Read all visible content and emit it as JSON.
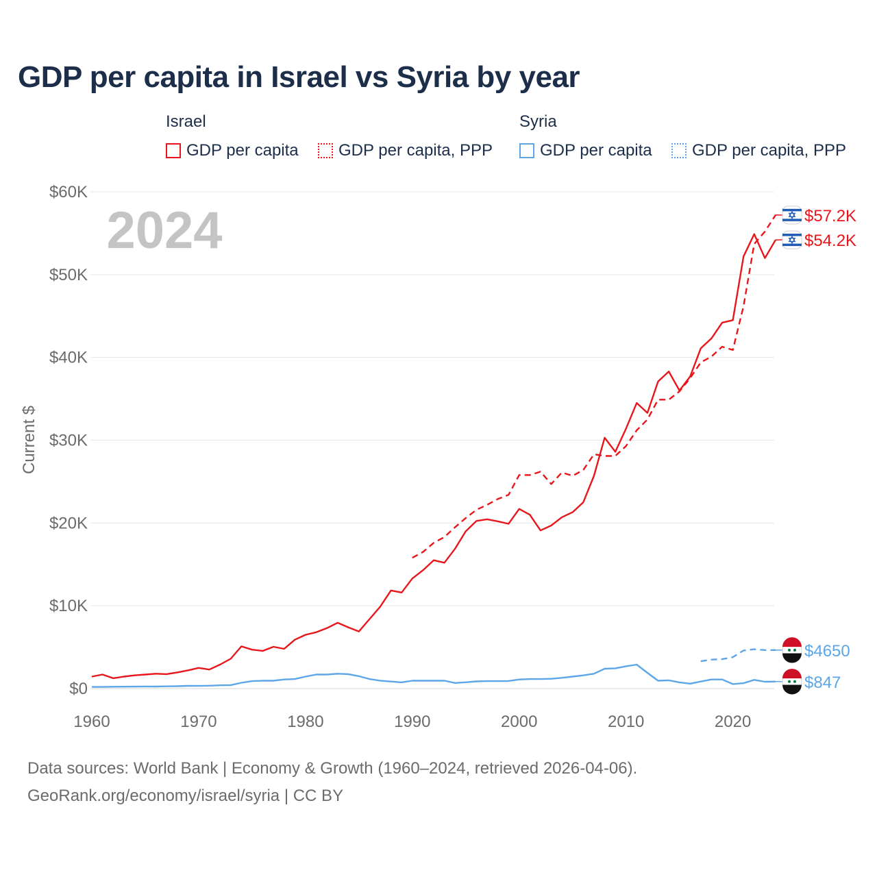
{
  "title": "GDP per capita in Israel vs Syria by year",
  "legend": {
    "groups": [
      {
        "country": "Israel",
        "items": [
          {
            "label": "GDP per capita",
            "style": "solid",
            "color": "#e8161b"
          },
          {
            "label": "GDP per capita, PPP",
            "style": "dotted",
            "color": "#e8161b"
          }
        ]
      },
      {
        "country": "Syria",
        "items": [
          {
            "label": "GDP per capita",
            "style": "solid",
            "color": "#5ca6e8"
          },
          {
            "label": "GDP per capita, PPP",
            "style": "dotted",
            "color": "#5ca6e8"
          }
        ]
      }
    ]
  },
  "year_watermark": "2024",
  "footer": {
    "line1": "Data sources: World Bank | Economy & Growth (1960–2024, retrieved 2026-04-06).",
    "line2": "GeoRank.org/economy/israel/syria | CC BY"
  },
  "chart_data": {
    "type": "line",
    "title": "GDP per capita in Israel vs Syria by year",
    "xlabel": "",
    "ylabel": "Current $",
    "xlim": [
      1960,
      2024
    ],
    "ylim": [
      0,
      60000
    ],
    "x_ticks": [
      1960,
      1970,
      1980,
      1990,
      2000,
      2010,
      2020
    ],
    "y_ticks": [
      {
        "value": 0,
        "label": "$0"
      },
      {
        "value": 10000,
        "label": "$10K"
      },
      {
        "value": 20000,
        "label": "$20K"
      },
      {
        "value": 30000,
        "label": "$30K"
      },
      {
        "value": 40000,
        "label": "$40K"
      },
      {
        "value": 50000,
        "label": "$50K"
      },
      {
        "value": 60000,
        "label": "$60K"
      }
    ],
    "grid": true,
    "series": [
      {
        "name": "Israel GDP per capita",
        "color": "#e8161b",
        "dash": "solid",
        "end_label": "$54.2K",
        "end_flag": "israel",
        "x": [
          1960,
          1961,
          1962,
          1963,
          1964,
          1965,
          1966,
          1967,
          1968,
          1969,
          1970,
          1971,
          1972,
          1973,
          1974,
          1975,
          1976,
          1977,
          1978,
          1979,
          1980,
          1981,
          1982,
          1983,
          1984,
          1985,
          1986,
          1987,
          1988,
          1989,
          1990,
          1991,
          1992,
          1993,
          1994,
          1995,
          1996,
          1997,
          1998,
          1999,
          2000,
          2001,
          2002,
          2003,
          2004,
          2005,
          2006,
          2007,
          2008,
          2009,
          2010,
          2011,
          2012,
          2013,
          2014,
          2015,
          2016,
          2017,
          2018,
          2019,
          2020,
          2021,
          2022,
          2023,
          2024
        ],
        "values": [
          1450,
          1700,
          1250,
          1450,
          1600,
          1700,
          1800,
          1750,
          1950,
          2200,
          2500,
          2300,
          2900,
          3600,
          5100,
          4700,
          4550,
          5050,
          4800,
          5900,
          6500,
          6800,
          7300,
          7950,
          7400,
          6900,
          8400,
          9900,
          11850,
          11600,
          13300,
          14300,
          15500,
          15200,
          16900,
          19000,
          20250,
          20450,
          20200,
          19900,
          21700,
          21000,
          19100,
          19700,
          20700,
          21300,
          22500,
          25700,
          30300,
          28600,
          31400,
          34500,
          33300,
          37100,
          38300,
          36000,
          37700,
          41100,
          42300,
          44200,
          44500,
          52200,
          54900,
          52000,
          54200
        ]
      },
      {
        "name": "Israel GDP per capita, PPP",
        "color": "#e8161b",
        "dash": "dashed",
        "end_label": "$57.2K",
        "end_flag": "israel",
        "x": [
          1990,
          1991,
          1992,
          1993,
          1994,
          1995,
          1996,
          1997,
          1998,
          1999,
          2000,
          2001,
          2002,
          2003,
          2004,
          2005,
          2006,
          2007,
          2008,
          2009,
          2010,
          2011,
          2012,
          2013,
          2014,
          2015,
          2016,
          2017,
          2018,
          2019,
          2020,
          2021,
          2022,
          2023,
          2024
        ],
        "values": [
          15800,
          16500,
          17600,
          18300,
          19500,
          20600,
          21600,
          22200,
          22900,
          23400,
          25800,
          25800,
          26200,
          24700,
          26100,
          25700,
          26400,
          28300,
          28100,
          28100,
          29300,
          31200,
          32500,
          34900,
          34900,
          35900,
          37500,
          39400,
          40100,
          41300,
          40900,
          46200,
          53700,
          55200,
          57200
        ]
      },
      {
        "name": "Syria GDP per capita",
        "color": "#5ca6e8",
        "dash": "solid",
        "end_label": "$847",
        "end_flag": "syria",
        "x": [
          1960,
          1961,
          1962,
          1963,
          1964,
          1965,
          1966,
          1967,
          1968,
          1969,
          1970,
          1971,
          1972,
          1973,
          1974,
          1975,
          1976,
          1977,
          1978,
          1979,
          1980,
          1981,
          1982,
          1983,
          1984,
          1985,
          1986,
          1987,
          1988,
          1989,
          1990,
          1991,
          1992,
          1993,
          1994,
          1995,
          1996,
          1997,
          1998,
          1999,
          2000,
          2001,
          2002,
          2003,
          2004,
          2005,
          2006,
          2007,
          2008,
          2009,
          2010,
          2011,
          2012,
          2013,
          2014,
          2015,
          2016,
          2017,
          2018,
          2019,
          2020,
          2021,
          2022,
          2023,
          2024
        ],
        "values": [
          200,
          200,
          220,
          230,
          240,
          260,
          250,
          270,
          290,
          330,
          320,
          350,
          400,
          420,
          700,
          900,
          950,
          950,
          1100,
          1150,
          1450,
          1700,
          1700,
          1800,
          1750,
          1500,
          1150,
          950,
          850,
          750,
          950,
          950,
          950,
          950,
          680,
          760,
          870,
          900,
          900,
          920,
          1100,
          1150,
          1150,
          1180,
          1300,
          1450,
          1600,
          1800,
          2400,
          2450,
          2700,
          2900,
          1900,
          950,
          1000,
          750,
          600,
          850,
          1100,
          1100,
          550,
          650,
          1050,
          830,
          847
        ]
      },
      {
        "name": "Syria GDP per capita, PPP",
        "color": "#5ca6e8",
        "dash": "dashed",
        "end_label": "$4650",
        "end_flag": "syria",
        "x": [
          2017,
          2018,
          2019,
          2020,
          2021,
          2022,
          2023,
          2024
        ],
        "values": [
          3300,
          3500,
          3550,
          3800,
          4600,
          4750,
          4650,
          4650
        ]
      }
    ]
  }
}
